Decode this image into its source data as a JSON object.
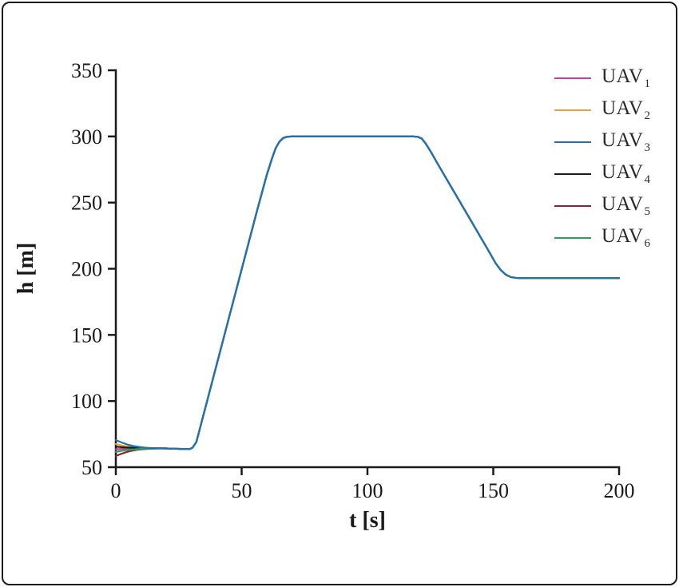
{
  "chart_data": {
    "type": "line",
    "title": "",
    "xlabel": "t [s]",
    "ylabel": "h [m]",
    "xlim": [
      0,
      200
    ],
    "ylim": [
      50,
      350
    ],
    "x_ticks": [
      0,
      50,
      100,
      150,
      200
    ],
    "y_ticks": [
      50,
      100,
      150,
      200,
      250,
      300,
      350
    ],
    "grid": false,
    "legend_position": "top-right",
    "axis_color": "#1a1a1a",
    "series": [
      {
        "name": "UAV",
        "sub": "1",
        "color": "#c9399e",
        "z": 1,
        "points": [
          [
            0,
            63.5
          ],
          [
            2,
            63.8
          ],
          [
            4,
            64.0
          ],
          [
            7,
            64.15
          ],
          [
            10,
            64.25
          ],
          [
            14,
            64.3
          ],
          [
            18,
            64.25
          ],
          [
            20,
            64.2
          ],
          [
            23,
            64.0
          ],
          [
            26,
            63.8
          ],
          [
            28,
            63.7
          ],
          [
            29.5,
            63.8
          ],
          [
            30.5,
            64.8
          ],
          [
            32,
            69
          ],
          [
            36,
            98
          ],
          [
            40,
            127
          ],
          [
            44,
            156
          ],
          [
            48,
            185
          ],
          [
            52,
            214
          ],
          [
            56,
            243
          ],
          [
            58,
            257
          ],
          [
            60,
            271
          ],
          [
            62,
            283
          ],
          [
            63.5,
            291
          ],
          [
            65,
            296
          ],
          [
            66.5,
            298.8
          ],
          [
            68,
            299.7
          ],
          [
            70,
            300
          ],
          [
            118,
            300
          ],
          [
            120,
            299.7
          ],
          [
            121.5,
            298.5
          ],
          [
            123,
            295
          ],
          [
            125,
            289
          ],
          [
            128,
            279
          ],
          [
            132,
            266
          ],
          [
            136,
            253
          ],
          [
            140,
            240
          ],
          [
            144,
            227
          ],
          [
            148,
            214
          ],
          [
            151,
            204
          ],
          [
            153,
            199
          ],
          [
            155,
            195.5
          ],
          [
            157,
            193.7
          ],
          [
            159,
            193.1
          ],
          [
            161,
            193
          ],
          [
            200,
            193
          ]
        ]
      },
      {
        "name": "UAV",
        "sub": "2",
        "color": "#eda13d",
        "z": 2,
        "points": [
          [
            0,
            67.5
          ],
          [
            2,
            66.6
          ],
          [
            4,
            65.9
          ],
          [
            6,
            65.4
          ],
          [
            8,
            65.0
          ],
          [
            10,
            64.75
          ],
          [
            13,
            64.5
          ],
          [
            16,
            64.35
          ],
          [
            18,
            64.25
          ],
          [
            20,
            64.2
          ],
          [
            23,
            64.0
          ],
          [
            26,
            63.8
          ],
          [
            28,
            63.7
          ],
          [
            29.5,
            63.8
          ],
          [
            30.5,
            64.8
          ],
          [
            32,
            69
          ],
          [
            36,
            98
          ],
          [
            40,
            127
          ],
          [
            44,
            156
          ],
          [
            48,
            185
          ],
          [
            52,
            214
          ],
          [
            56,
            243
          ],
          [
            58,
            257
          ],
          [
            60,
            271
          ],
          [
            62,
            283
          ],
          [
            63.5,
            291
          ],
          [
            65,
            296
          ],
          [
            66.5,
            298.8
          ],
          [
            68,
            299.7
          ],
          [
            70,
            300
          ],
          [
            118,
            300
          ],
          [
            120,
            299.7
          ],
          [
            121.5,
            298.5
          ],
          [
            123,
            295
          ],
          [
            125,
            289
          ],
          [
            128,
            279
          ],
          [
            132,
            266
          ],
          [
            136,
            253
          ],
          [
            140,
            240
          ],
          [
            144,
            227
          ],
          [
            148,
            214
          ],
          [
            151,
            204
          ],
          [
            153,
            199
          ],
          [
            155,
            195.5
          ],
          [
            157,
            193.7
          ],
          [
            159,
            193.1
          ],
          [
            161,
            193
          ],
          [
            200,
            193
          ]
        ]
      },
      {
        "name": "UAV",
        "sub": "3",
        "color": "#2171b5",
        "z": 10,
        "points": [
          [
            0,
            70.5
          ],
          [
            1.5,
            69.3
          ],
          [
            3,
            68.2
          ],
          [
            5,
            66.9
          ],
          [
            7,
            66.0
          ],
          [
            9,
            65.4
          ],
          [
            11,
            64.9
          ],
          [
            13,
            64.6
          ],
          [
            16,
            64.35
          ],
          [
            18,
            64.25
          ],
          [
            20,
            64.2
          ],
          [
            23,
            64.0
          ],
          [
            26,
            63.8
          ],
          [
            28,
            63.7
          ],
          [
            29.5,
            63.8
          ],
          [
            30.5,
            64.8
          ],
          [
            32,
            69
          ],
          [
            36,
            98
          ],
          [
            40,
            127
          ],
          [
            44,
            156
          ],
          [
            48,
            185
          ],
          [
            52,
            214
          ],
          [
            56,
            243
          ],
          [
            58,
            257
          ],
          [
            60,
            271
          ],
          [
            62,
            283
          ],
          [
            63.5,
            291
          ],
          [
            65,
            296
          ],
          [
            66.5,
            298.8
          ],
          [
            68,
            299.7
          ],
          [
            70,
            300
          ],
          [
            118,
            300
          ],
          [
            120,
            299.7
          ],
          [
            121.5,
            298.5
          ],
          [
            123,
            295
          ],
          [
            125,
            289
          ],
          [
            128,
            279
          ],
          [
            132,
            266
          ],
          [
            136,
            253
          ],
          [
            140,
            240
          ],
          [
            144,
            227
          ],
          [
            148,
            214
          ],
          [
            151,
            204
          ],
          [
            153,
            199
          ],
          [
            155,
            195.5
          ],
          [
            157,
            193.7
          ],
          [
            159,
            193.1
          ],
          [
            161,
            193
          ],
          [
            200,
            193
          ]
        ]
      },
      {
        "name": "UAV",
        "sub": "4",
        "color": "#1a1a1a",
        "z": 3,
        "points": [
          [
            0,
            65.5
          ],
          [
            2,
            65.2
          ],
          [
            4,
            64.9
          ],
          [
            6,
            64.7
          ],
          [
            8,
            64.55
          ],
          [
            10,
            64.45
          ],
          [
            13,
            64.35
          ],
          [
            16,
            64.3
          ],
          [
            18,
            64.25
          ],
          [
            20,
            64.2
          ],
          [
            23,
            64.0
          ],
          [
            26,
            63.8
          ],
          [
            28,
            63.7
          ],
          [
            29.5,
            63.8
          ],
          [
            30.5,
            64.8
          ],
          [
            32,
            69
          ],
          [
            36,
            98
          ],
          [
            40,
            127
          ],
          [
            44,
            156
          ],
          [
            48,
            185
          ],
          [
            52,
            214
          ],
          [
            56,
            243
          ],
          [
            58,
            257
          ],
          [
            60,
            271
          ],
          [
            62,
            283
          ],
          [
            63.5,
            291
          ],
          [
            65,
            296
          ],
          [
            66.5,
            298.8
          ],
          [
            68,
            299.7
          ],
          [
            70,
            300
          ],
          [
            118,
            300
          ],
          [
            120,
            299.7
          ],
          [
            121.5,
            298.5
          ],
          [
            123,
            295
          ],
          [
            125,
            289
          ],
          [
            128,
            279
          ],
          [
            132,
            266
          ],
          [
            136,
            253
          ],
          [
            140,
            240
          ],
          [
            144,
            227
          ],
          [
            148,
            214
          ],
          [
            151,
            204
          ],
          [
            153,
            199
          ],
          [
            155,
            195.5
          ],
          [
            157,
            193.7
          ],
          [
            159,
            193.1
          ],
          [
            161,
            193
          ],
          [
            200,
            193
          ]
        ]
      },
      {
        "name": "UAV",
        "sub": "5",
        "color": "#8f2133",
        "z": 4,
        "points": [
          [
            0,
            58.5
          ],
          [
            2,
            60.0
          ],
          [
            4,
            61.3
          ],
          [
            6,
            62.3
          ],
          [
            8,
            63.0
          ],
          [
            10,
            63.5
          ],
          [
            13,
            63.9
          ],
          [
            16,
            64.1
          ],
          [
            18,
            64.2
          ],
          [
            20,
            64.2
          ],
          [
            23,
            64.0
          ],
          [
            26,
            63.8
          ],
          [
            28,
            63.7
          ],
          [
            29.5,
            63.8
          ],
          [
            30.5,
            64.8
          ],
          [
            32,
            69
          ],
          [
            36,
            98
          ],
          [
            40,
            127
          ],
          [
            44,
            156
          ],
          [
            48,
            185
          ],
          [
            52,
            214
          ],
          [
            56,
            243
          ],
          [
            58,
            257
          ],
          [
            60,
            271
          ],
          [
            62,
            283
          ],
          [
            63.5,
            291
          ],
          [
            65,
            296
          ],
          [
            66.5,
            298.8
          ],
          [
            68,
            299.7
          ],
          [
            70,
            300
          ],
          [
            118,
            300
          ],
          [
            120,
            299.7
          ],
          [
            121.5,
            298.5
          ],
          [
            123,
            295
          ],
          [
            125,
            289
          ],
          [
            128,
            279
          ],
          [
            132,
            266
          ],
          [
            136,
            253
          ],
          [
            140,
            240
          ],
          [
            144,
            227
          ],
          [
            148,
            214
          ],
          [
            151,
            204
          ],
          [
            153,
            199
          ],
          [
            155,
            195.5
          ],
          [
            157,
            193.7
          ],
          [
            159,
            193.1
          ],
          [
            161,
            193
          ],
          [
            200,
            193
          ]
        ]
      },
      {
        "name": "UAV",
        "sub": "6",
        "color": "#28a15a",
        "z": 5,
        "points": [
          [
            0,
            61.5
          ],
          [
            2,
            62.3
          ],
          [
            4,
            62.9
          ],
          [
            6,
            63.3
          ],
          [
            8,
            63.6
          ],
          [
            10,
            63.85
          ],
          [
            13,
            64.05
          ],
          [
            16,
            64.15
          ],
          [
            18,
            64.2
          ],
          [
            20,
            64.2
          ],
          [
            23,
            64.0
          ],
          [
            26,
            63.8
          ],
          [
            28,
            63.7
          ],
          [
            29.5,
            63.8
          ],
          [
            30.5,
            64.8
          ],
          [
            32,
            69
          ],
          [
            36,
            98
          ],
          [
            40,
            127
          ],
          [
            44,
            156
          ],
          [
            48,
            185
          ],
          [
            52,
            214
          ],
          [
            56,
            243
          ],
          [
            58,
            257
          ],
          [
            60,
            271
          ],
          [
            62,
            283
          ],
          [
            63.5,
            291
          ],
          [
            65,
            296
          ],
          [
            66.5,
            298.8
          ],
          [
            68,
            299.7
          ],
          [
            70,
            300
          ],
          [
            118,
            300
          ],
          [
            120,
            299.7
          ],
          [
            121.5,
            298.5
          ],
          [
            123,
            295
          ],
          [
            125,
            289
          ],
          [
            128,
            279
          ],
          [
            132,
            266
          ],
          [
            136,
            253
          ],
          [
            140,
            240
          ],
          [
            144,
            227
          ],
          [
            148,
            214
          ],
          [
            151,
            204
          ],
          [
            153,
            199
          ],
          [
            155,
            195.5
          ],
          [
            157,
            193.7
          ],
          [
            159,
            193.1
          ],
          [
            161,
            193
          ],
          [
            200,
            193
          ]
        ]
      }
    ]
  }
}
